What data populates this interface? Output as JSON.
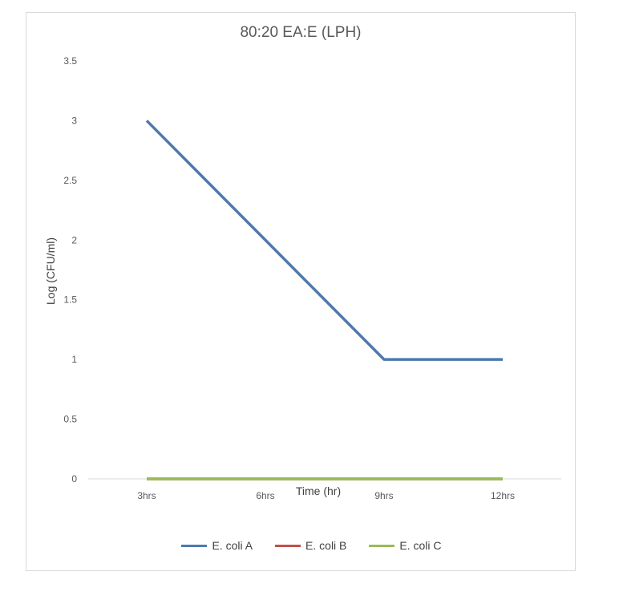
{
  "chart_data": {
    "type": "line",
    "title": "80:20 EA:E (LPH)",
    "xlabel": "Time (hr)",
    "ylabel": "Log (CFU/ml)",
    "categories": [
      "3hrs",
      "6hrs",
      "9hrs",
      "12hrs"
    ],
    "ylim": [
      0,
      3.5
    ],
    "yticks": [
      "0",
      "0.5",
      "1",
      "1.5",
      "2",
      "2.5",
      "3",
      "3.5"
    ],
    "grid": false,
    "legend_position": "bottom",
    "series": [
      {
        "name": "E. coli A",
        "color": "#4e79ad",
        "values": [
          3,
          2,
          1,
          1
        ]
      },
      {
        "name": "E. coli B",
        "color": "#c0504d",
        "values": [
          0,
          0,
          0,
          0
        ]
      },
      {
        "name": "E. coli C",
        "color": "#9bbb59",
        "values": [
          0,
          0,
          0,
          0
        ]
      }
    ]
  }
}
